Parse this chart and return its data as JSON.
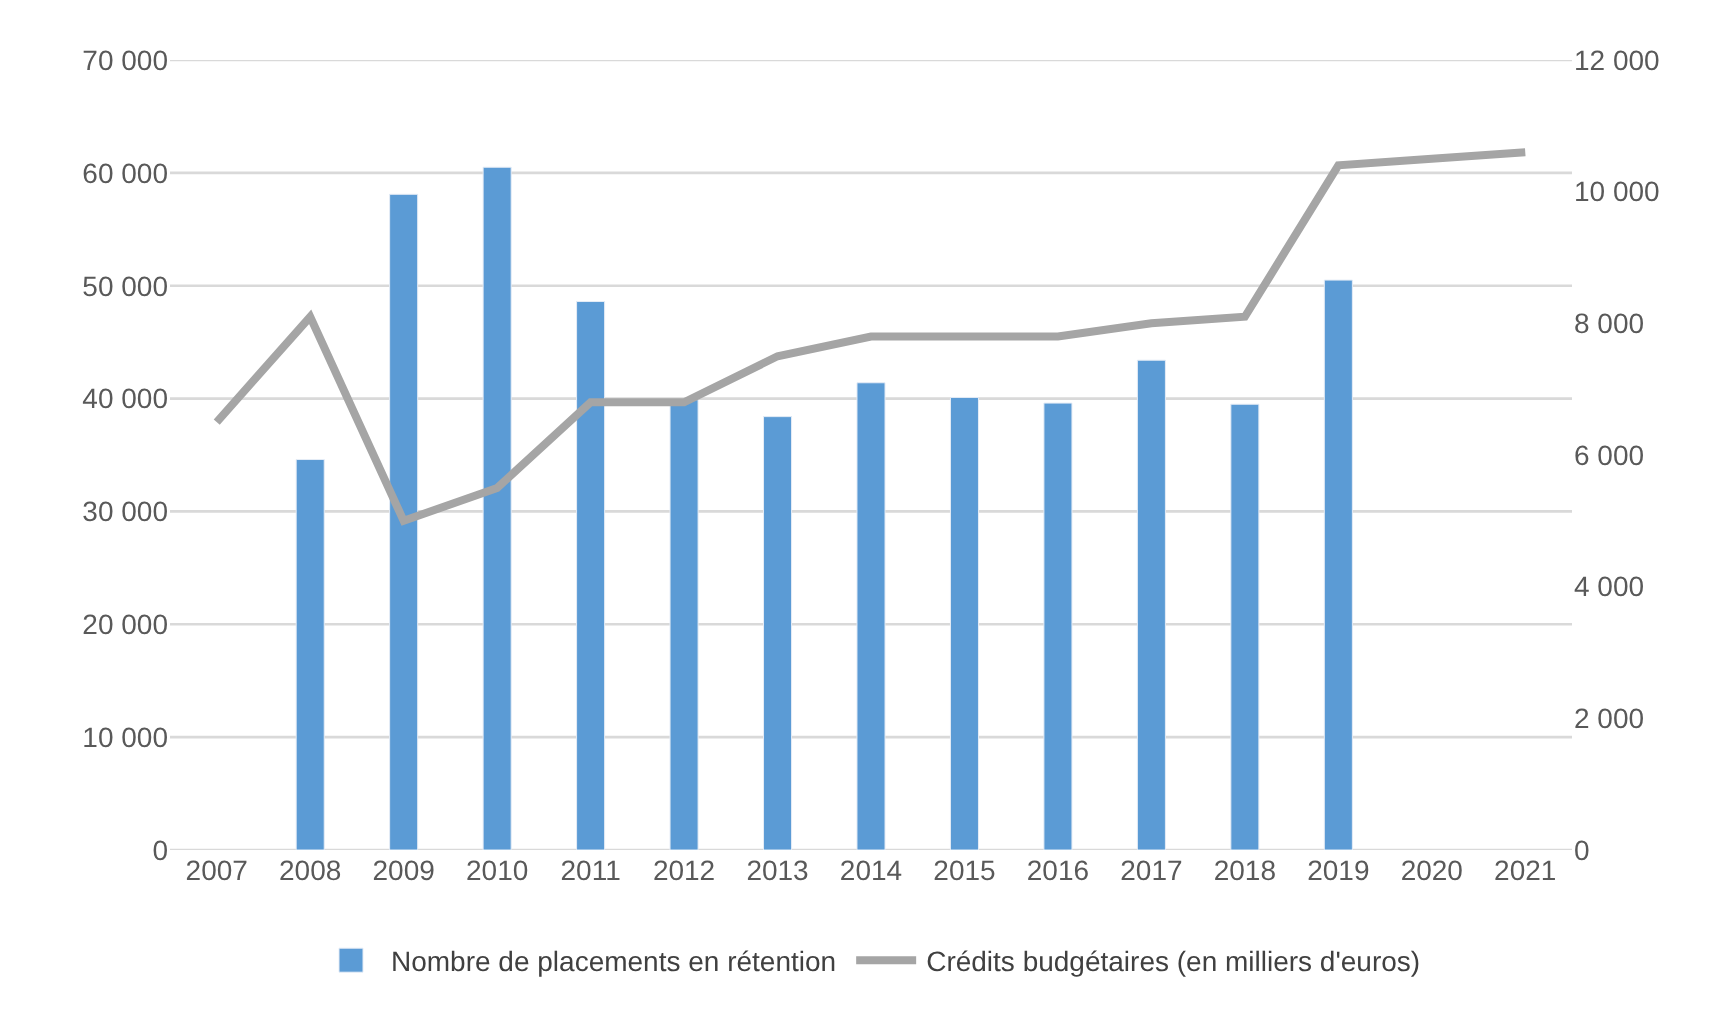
{
  "chart_data": {
    "type": "bar",
    "categories": [
      "2007",
      "2008",
      "2009",
      "2010",
      "2011",
      "2012",
      "2013",
      "2014",
      "2015",
      "2016",
      "2017",
      "2018",
      "2019",
      "2020",
      "2021"
    ],
    "series": [
      {
        "name": "Nombre de placements en rétention",
        "color": "#5b9bd5",
        "values": [
          null,
          34600,
          58100,
          60500,
          48600,
          39900,
          38400,
          41400,
          40100,
          39600,
          43400,
          39500,
          50500,
          null,
          null
        ]
      },
      {
        "name": "Crédits budgétaires (en milliers d'euros)",
        "type": "line",
        "axis": "y2",
        "color": "#a5a5a5",
        "values": [
          6500,
          8100,
          5000,
          5500,
          6800,
          6800,
          7500,
          7800,
          7800,
          7800,
          8000,
          8100,
          10400,
          10500,
          10600
        ]
      }
    ],
    "ylim": [
      0,
      70000
    ],
    "yticks": [
      {
        "value": 0,
        "label": "0"
      },
      {
        "value": 10000,
        "label": "10 000"
      },
      {
        "value": 20000,
        "label": "20 000"
      },
      {
        "value": 30000,
        "label": "30 000"
      },
      {
        "value": 40000,
        "label": "40 000"
      },
      {
        "value": 50000,
        "label": "50 000"
      },
      {
        "value": 60000,
        "label": "60 000"
      },
      {
        "value": 70000,
        "label": "70 000"
      }
    ],
    "y2lim": [
      0,
      12000
    ],
    "y2ticks": [
      {
        "value": 0,
        "label": "0"
      },
      {
        "value": 2000,
        "label": "2 000"
      },
      {
        "value": 4000,
        "label": "4 000"
      },
      {
        "value": 6000,
        "label": "6 000"
      },
      {
        "value": 8000,
        "label": "8 000"
      },
      {
        "value": 10000,
        "label": "10 000"
      },
      {
        "value": 12000,
        "label": "12 000"
      }
    ],
    "grid": "y",
    "legend": "bottom",
    "marker": "none",
    "line_style": "solid"
  }
}
